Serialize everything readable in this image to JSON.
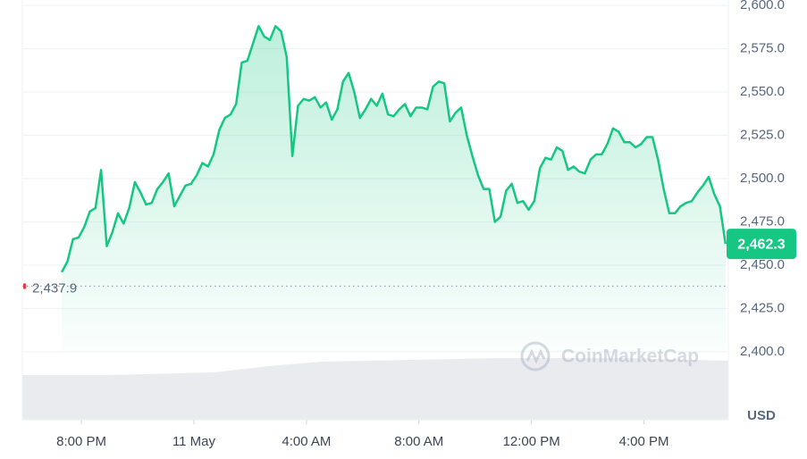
{
  "chart_data": {
    "type": "line",
    "color": "#16c784",
    "unit": "USD",
    "watermark": "CoinMarketCap",
    "grid": true,
    "ylim": [
      2400,
      2600
    ],
    "yticks": [
      {
        "value": 2400,
        "label": "2,400.0"
      },
      {
        "value": 2425,
        "label": "2,425.0"
      },
      {
        "value": 2450,
        "label": "2,450.0"
      },
      {
        "value": 2475,
        "label": "2,475.0"
      },
      {
        "value": 2500,
        "label": "2,500.0"
      },
      {
        "value": 2525,
        "label": "2,525.0"
      },
      {
        "value": 2550,
        "label": "2,550.0"
      },
      {
        "value": 2575,
        "label": "2,575.0"
      },
      {
        "value": 2600,
        "label": "2,600.0"
      }
    ],
    "xlim": [
      17.9,
      43
    ],
    "xticks": [
      {
        "value": 20,
        "label": "8:00 PM"
      },
      {
        "value": 24,
        "label": "11 May"
      },
      {
        "value": 28,
        "label": "4:00 AM"
      },
      {
        "value": 32,
        "label": "8:00 AM"
      },
      {
        "value": 36,
        "label": "12:00 PM"
      },
      {
        "value": 40,
        "label": "4:00 PM"
      }
    ],
    "reference_line": {
      "value": 2437.9,
      "label": "2,437.9",
      "color": "#ea3943"
    },
    "current_price_label": "2,462.3",
    "x": [
      19.3,
      19.5,
      19.7,
      19.9,
      20.1,
      20.3,
      20.5,
      20.7,
      20.9,
      21.1,
      21.3,
      21.5,
      21.7,
      21.9,
      22.1,
      22.3,
      22.5,
      22.7,
      22.9,
      23.1,
      23.3,
      23.5,
      23.7,
      23.9,
      24.1,
      24.3,
      24.5,
      24.7,
      24.9,
      25.1,
      25.3,
      25.5,
      25.7,
      25.9,
      26.1,
      26.3,
      26.5,
      26.7,
      26.9,
      27.1,
      27.3,
      27.5,
      27.7,
      27.9,
      28.1,
      28.3,
      28.5,
      28.7,
      28.9,
      29.1,
      29.3,
      29.5,
      29.7,
      29.9,
      30.1,
      30.3,
      30.5,
      30.7,
      30.9,
      31.1,
      31.3,
      31.5,
      31.7,
      31.9,
      32.1,
      32.3,
      32.5,
      32.7,
      32.9,
      33.1,
      33.3,
      33.5,
      33.7,
      33.9,
      34.1,
      34.3,
      34.5,
      34.7,
      34.9,
      35.1,
      35.3,
      35.5,
      35.7,
      35.9,
      36.1,
      36.3,
      36.5,
      36.7,
      36.9,
      37.1,
      37.3,
      37.5,
      37.7,
      37.9,
      38.1,
      38.3,
      38.5,
      38.7,
      38.9,
      39.1,
      39.3,
      39.5,
      39.7,
      39.9,
      40.1,
      40.3,
      40.5,
      40.7,
      40.9,
      41.1,
      41.3,
      41.5,
      41.7,
      41.9,
      42.1,
      42.3,
      42.5,
      42.7,
      42.9
    ],
    "values": [
      2446,
      2452,
      2465,
      2466,
      2472,
      2481,
      2483,
      2505,
      2461,
      2469,
      2480,
      2474,
      2483,
      2498,
      2492,
      2485,
      2486,
      2494,
      2498,
      2503,
      2484,
      2490,
      2496,
      2497,
      2502,
      2509,
      2507,
      2514,
      2528,
      2535,
      2537,
      2543,
      2567,
      2568,
      2578,
      2588,
      2582,
      2580,
      2588,
      2585,
      2570,
      2513,
      2542,
      2546,
      2545,
      2547,
      2541,
      2544,
      2534,
      2540,
      2556,
      2561,
      2550,
      2535,
      2540,
      2546,
      2542,
      2549,
      2537,
      2536,
      2540,
      2543,
      2536,
      2541,
      2541,
      2540,
      2553,
      2556,
      2555,
      2533,
      2538,
      2541,
      2525,
      2513,
      2502,
      2494,
      2494,
      2475,
      2478,
      2493,
      2497,
      2486,
      2487,
      2482,
      2487,
      2506,
      2512,
      2511,
      2518,
      2516,
      2505,
      2507,
      2504,
      2503,
      2511,
      2514,
      2514,
      2520,
      2529,
      2527,
      2521,
      2521,
      2518,
      2520,
      2524,
      2524,
      2511,
      2494,
      2480,
      2480,
      2484,
      2486,
      2487,
      2492,
      2496,
      2501,
      2491,
      2484,
      2462.3
    ]
  }
}
